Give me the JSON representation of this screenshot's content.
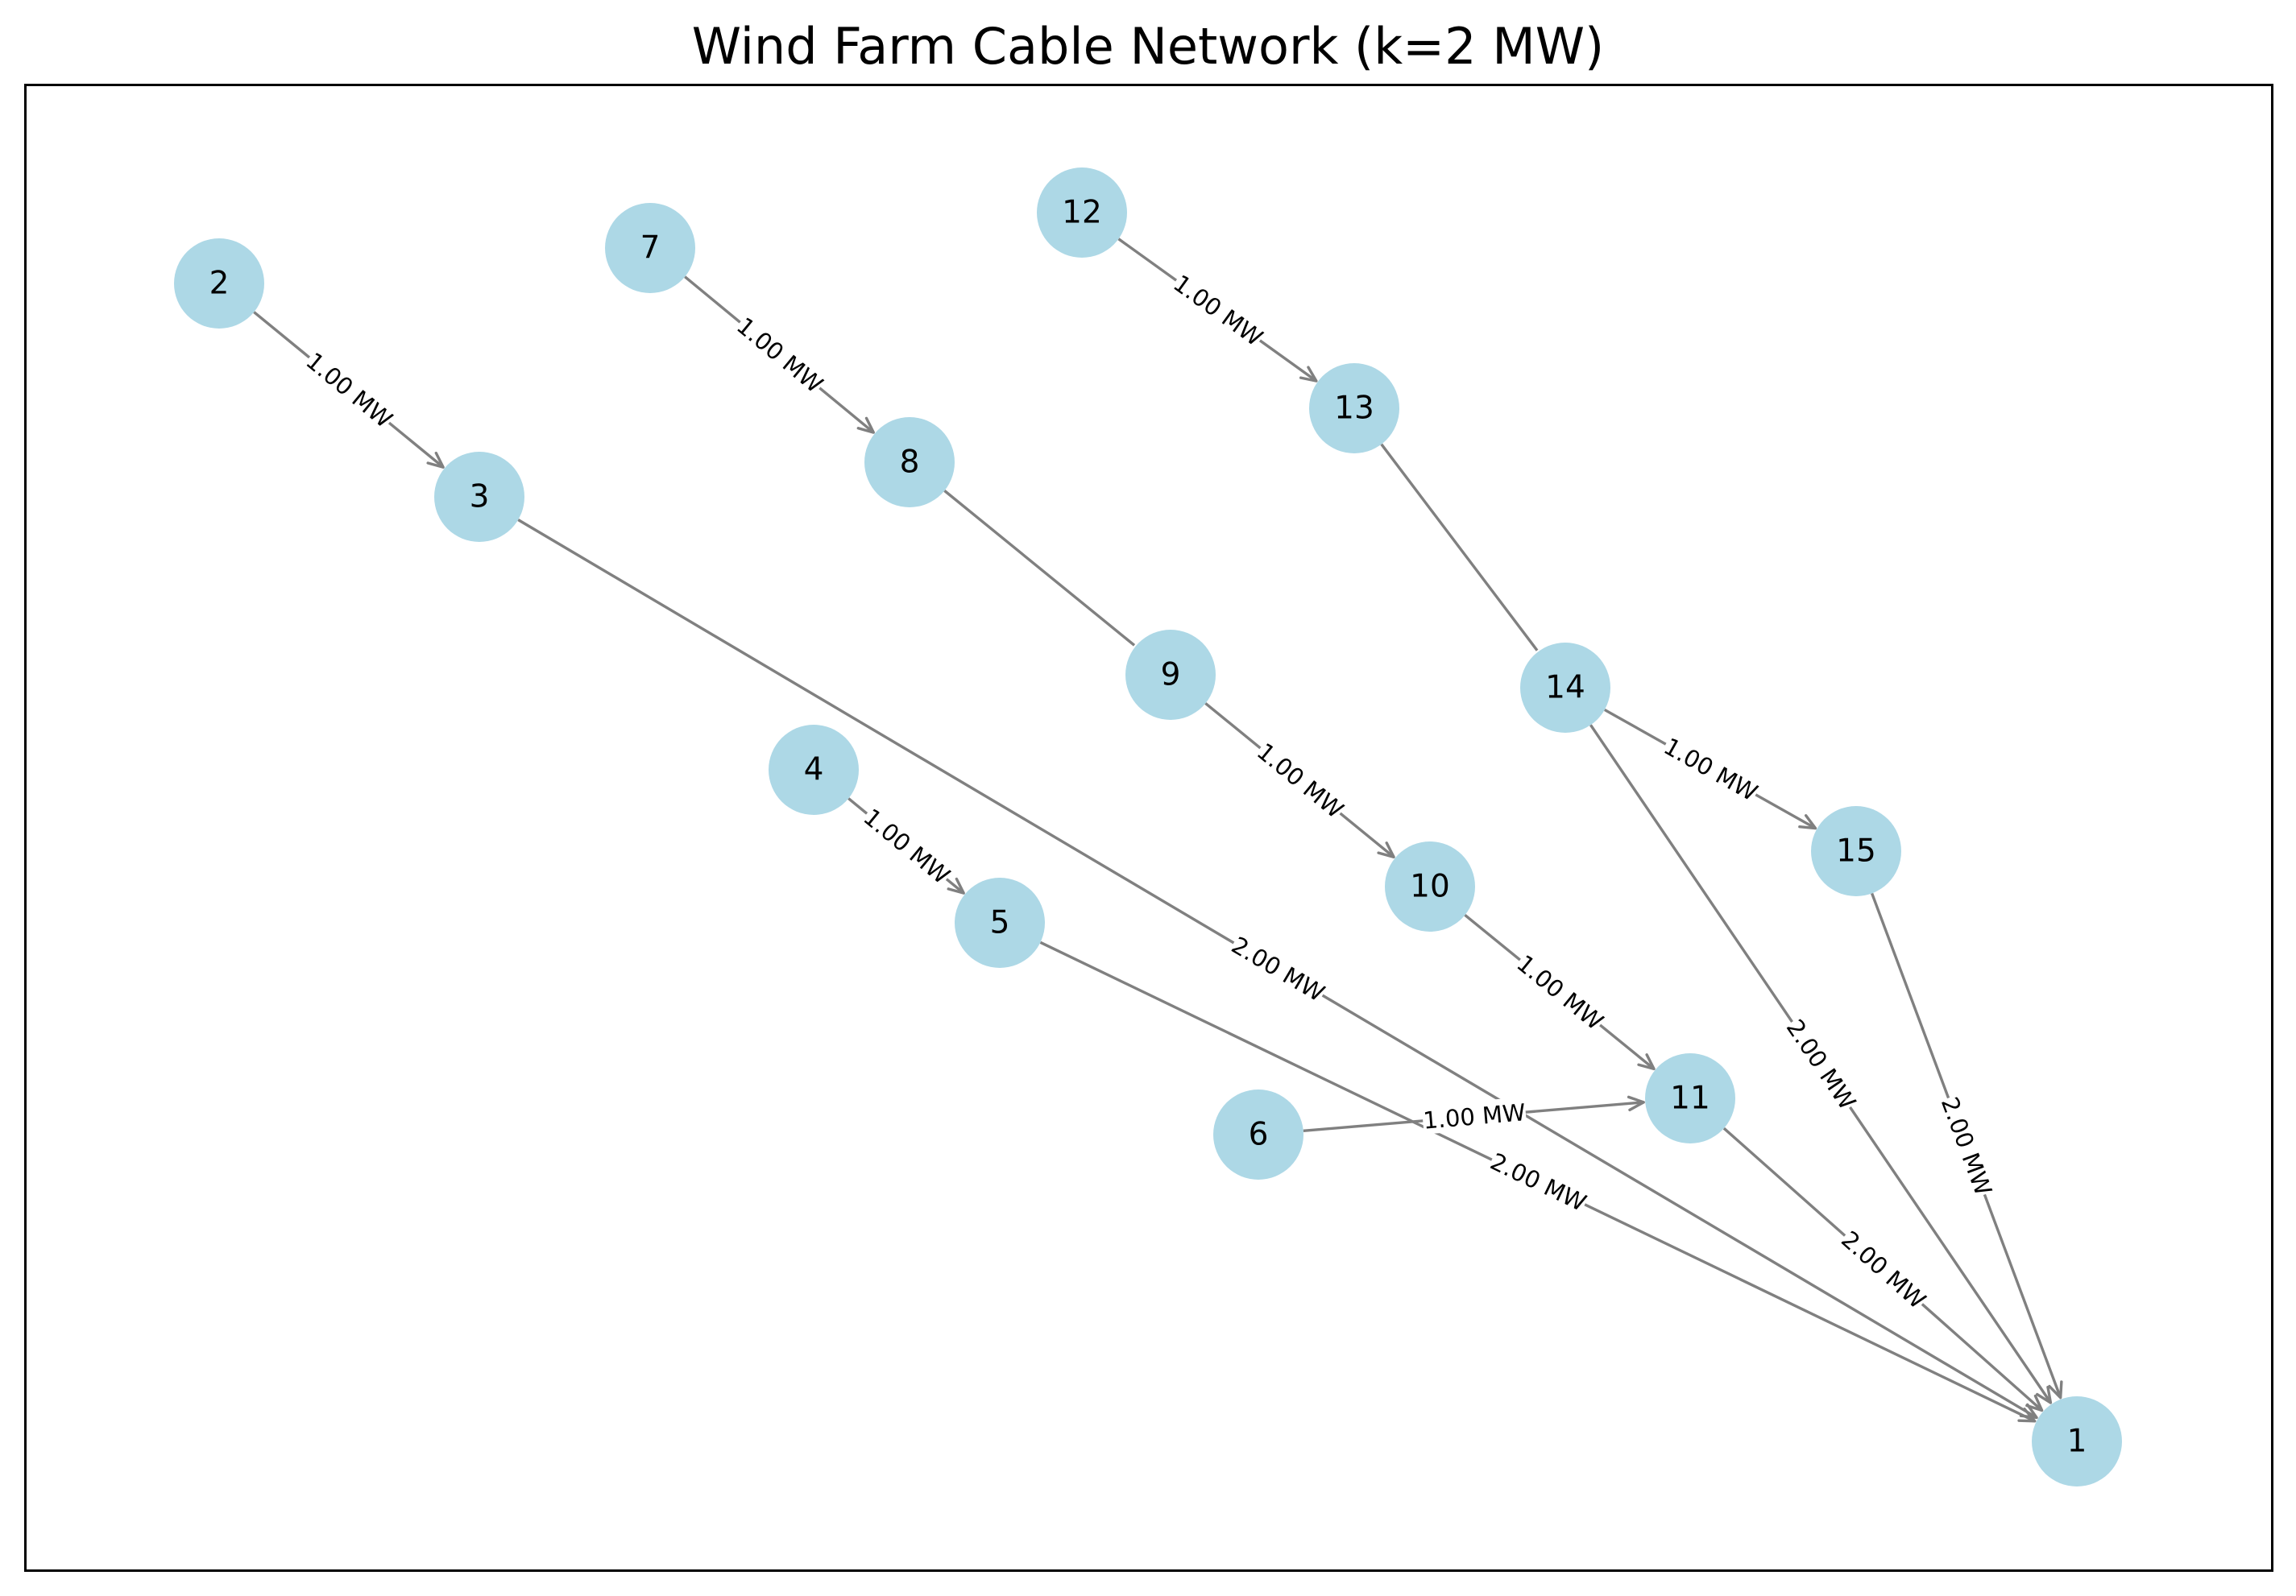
{
  "title": "Wind Farm Cable Network (k=2 MW)",
  "nodes": [
    {
      "id": "1"
    },
    {
      "id": "2"
    },
    {
      "id": "3"
    },
    {
      "id": "4"
    },
    {
      "id": "5"
    },
    {
      "id": "6"
    },
    {
      "id": "7"
    },
    {
      "id": "8"
    },
    {
      "id": "9"
    },
    {
      "id": "10"
    },
    {
      "id": "11"
    },
    {
      "id": "12"
    },
    {
      "id": "13"
    },
    {
      "id": "14"
    },
    {
      "id": "15"
    }
  ],
  "edges": [
    {
      "from": "2",
      "to": "3",
      "label": "1.00 MW",
      "arrow": true
    },
    {
      "from": "3",
      "to": "1",
      "label": "2.00 MW",
      "arrow": true
    },
    {
      "from": "4",
      "to": "5",
      "label": "1.00 MW",
      "arrow": true
    },
    {
      "from": "5",
      "to": "1",
      "label": "2.00 MW",
      "arrow": true
    },
    {
      "from": "6",
      "to": "11",
      "label": "1.00 MW",
      "arrow": true
    },
    {
      "from": "7",
      "to": "8",
      "label": "1.00 MW",
      "arrow": true
    },
    {
      "from": "8",
      "to": "9",
      "label": "",
      "arrow": false
    },
    {
      "from": "9",
      "to": "10",
      "label": "1.00 MW",
      "arrow": true
    },
    {
      "from": "10",
      "to": "11",
      "label": "1.00 MW",
      "arrow": true
    },
    {
      "from": "11",
      "to": "1",
      "label": "2.00 MW",
      "arrow": true
    },
    {
      "from": "12",
      "to": "13",
      "label": "1.00 MW",
      "arrow": true
    },
    {
      "from": "13",
      "to": "14",
      "label": "",
      "arrow": false
    },
    {
      "from": "14",
      "to": "15",
      "label": "1.00 MW",
      "arrow": true
    },
    {
      "from": "14",
      "to": "1",
      "label": "2.00 MW",
      "arrow": true
    },
    {
      "from": "15",
      "to": "1",
      "label": "2.00 MW",
      "arrow": true
    }
  ],
  "colors": {
    "node": "#add8e6",
    "edge": "#808080"
  }
}
